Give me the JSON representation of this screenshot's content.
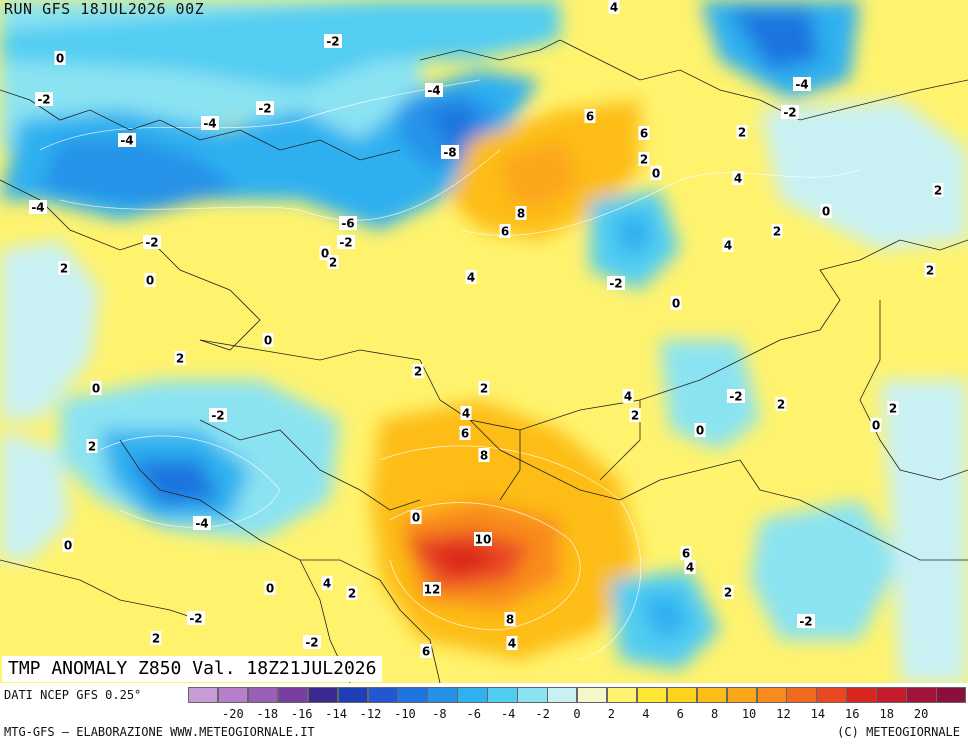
{
  "run_label": "RUN GFS 18JUL2026 00Z",
  "title": "TMP ANOMALY Z850 Val. 18Z21JUL2026",
  "source": "DATI NCEP GFS 0.25°",
  "credits_left": "MTG-GFS — ELABORAZIONE WWW.METEOGIORNALE.IT",
  "credits_right": "(C) METEOGIORNALE",
  "legend": {
    "ticks": [
      "-20",
      "-18",
      "-16",
      "-14",
      "-12",
      "-10",
      "-8",
      "-6",
      "-4",
      "-2",
      "0",
      "2",
      "4",
      "6",
      "8",
      "10",
      "12",
      "14",
      "16",
      "18",
      "20"
    ],
    "colors": [
      "#c89bd6",
      "#b57fcc",
      "#9b5fb8",
      "#7a3ea3",
      "#3a2a8f",
      "#1f3fb5",
      "#2157cf",
      "#1f74df",
      "#2592e8",
      "#2fb0f0",
      "#52cdf2",
      "#8be3f2",
      "#c9f1f4",
      "#f4f8c8",
      "#fff36e",
      "#ffe632",
      "#fed31a",
      "#fdbd17",
      "#fca61a",
      "#f98b1c",
      "#f26a1d",
      "#e94820",
      "#d9241f",
      "#c41b2d",
      "#a3133a",
      "#8a0f3c"
    ]
  },
  "contour_labels": [
    {
      "t": "-2"
    },
    {
      "t": "-4"
    },
    {
      "t": "-6"
    },
    {
      "t": "-8"
    },
    {
      "t": "-2"
    },
    {
      "t": "-4"
    },
    {
      "t": "-4"
    },
    {
      "t": "-2"
    },
    {
      "t": "0"
    },
    {
      "t": "-4"
    },
    {
      "t": "-2"
    },
    {
      "t": "2"
    },
    {
      "t": "0"
    },
    {
      "t": "-6"
    },
    {
      "t": "-2"
    },
    {
      "t": "0"
    },
    {
      "t": "2"
    },
    {
      "t": "4"
    },
    {
      "t": "6"
    },
    {
      "t": "6"
    },
    {
      "t": "2"
    },
    {
      "t": "0"
    },
    {
      "t": "8"
    },
    {
      "t": "6"
    },
    {
      "t": "-2"
    },
    {
      "t": "4"
    },
    {
      "t": "0"
    },
    {
      "t": "-4"
    },
    {
      "t": "-2"
    },
    {
      "t": "2"
    },
    {
      "t": "4"
    },
    {
      "t": "2"
    },
    {
      "t": "0"
    },
    {
      "t": "2"
    },
    {
      "t": "2"
    },
    {
      "t": "0"
    },
    {
      "t": "2"
    },
    {
      "t": "0"
    },
    {
      "t": "-2"
    },
    {
      "t": "2"
    },
    {
      "t": "2"
    },
    {
      "t": "2"
    },
    {
      "t": "4"
    },
    {
      "t": "2"
    },
    {
      "t": "4"
    },
    {
      "t": "6"
    },
    {
      "t": "8"
    },
    {
      "t": "-2"
    },
    {
      "t": "2"
    },
    {
      "t": "0"
    },
    {
      "t": "2"
    },
    {
      "t": "0"
    },
    {
      "t": "-4"
    },
    {
      "t": "0"
    },
    {
      "t": "0"
    },
    {
      "t": "10"
    },
    {
      "t": "12"
    },
    {
      "t": "4"
    },
    {
      "t": "2"
    },
    {
      "t": "0"
    },
    {
      "t": "6"
    },
    {
      "t": "4"
    },
    {
      "t": "2"
    },
    {
      "t": "-2"
    },
    {
      "t": "8"
    },
    {
      "t": "-2"
    },
    {
      "t": "2"
    },
    {
      "t": "4"
    },
    {
      "t": "6"
    },
    {
      "t": "-2"
    },
    {
      "t": "4"
    }
  ]
}
